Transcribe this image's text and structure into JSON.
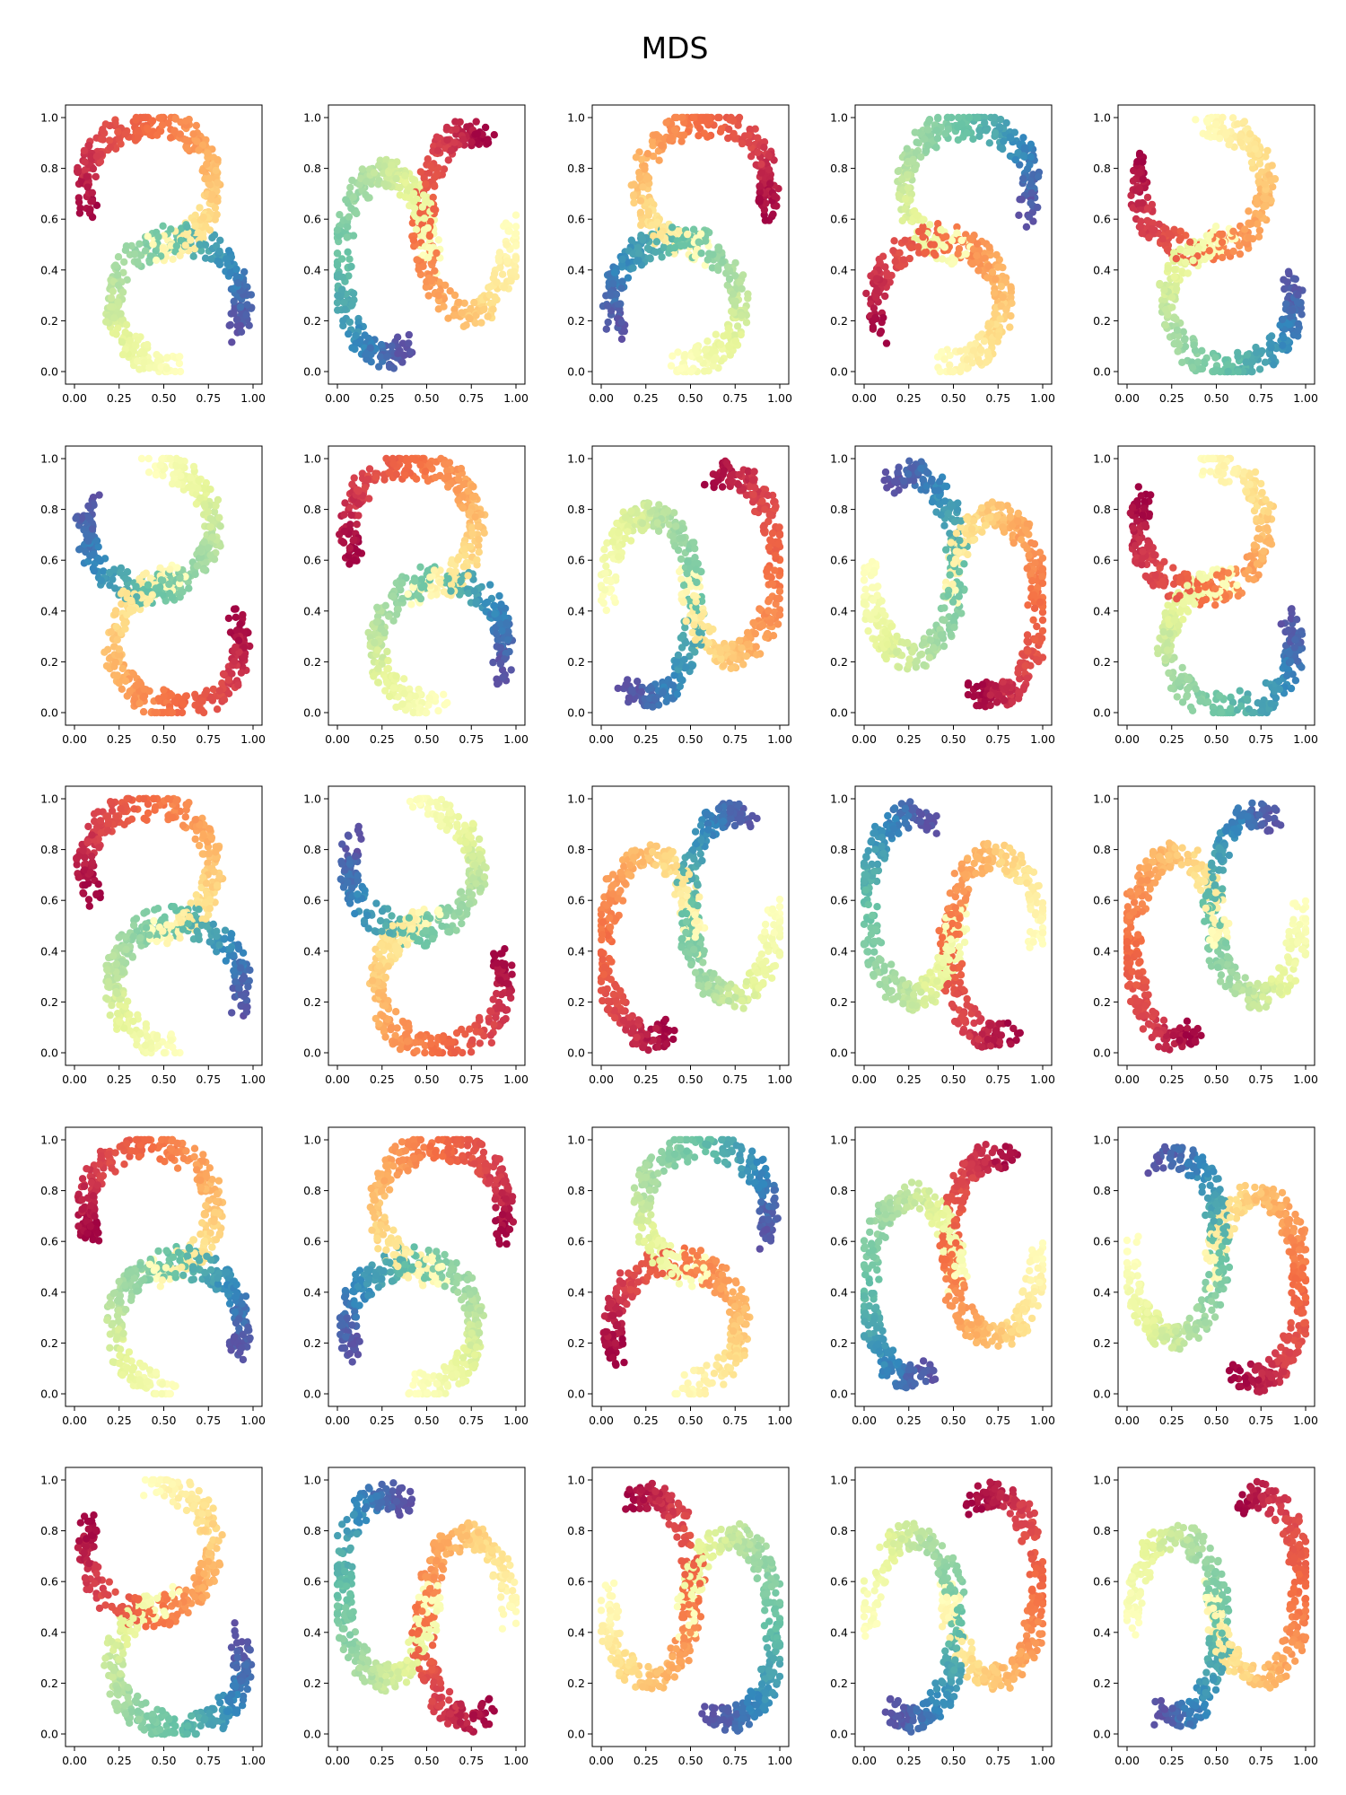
{
  "figure": {
    "title": "MDS"
  },
  "chart_data": {
    "type": "scatter",
    "title": "MDS",
    "layout": "5x5 grid of subplots",
    "colormap": "Spectral",
    "grid": false,
    "xlim": [
      0,
      1
    ],
    "ylim": [
      0,
      1
    ],
    "x_ticks": [
      "0.00",
      "0.25",
      "0.50",
      "0.75",
      "1.00"
    ],
    "y_ticks": [
      "0.0",
      "0.2",
      "0.4",
      "0.6",
      "0.8",
      "1.0"
    ],
    "panels": [
      {
        "shape": "S",
        "flipX": false,
        "flipY": false,
        "swap": false,
        "rev": false,
        "x": [
          0.0,
          1.0
        ],
        "y": [
          0.0,
          1.0
        ]
      },
      {
        "shape": "S",
        "flipX": true,
        "flipY": false,
        "swap": true,
        "rev": true,
        "x": [
          0.0,
          1.0
        ],
        "y": [
          0.0,
          1.0
        ]
      },
      {
        "shape": "S",
        "flipX": true,
        "flipY": false,
        "swap": false,
        "rev": false,
        "x": [
          0.0,
          1.0
        ],
        "y": [
          0.0,
          1.0
        ]
      },
      {
        "shape": "S",
        "flipX": true,
        "flipY": false,
        "swap": false,
        "rev": true,
        "x": [
          0.0,
          1.0
        ],
        "y": [
          0.0,
          1.0
        ]
      },
      {
        "shape": "S",
        "flipX": true,
        "flipY": true,
        "swap": false,
        "rev": true,
        "x": [
          0.0,
          1.0
        ],
        "y": [
          0.0,
          1.0
        ]
      },
      {
        "shape": "S",
        "flipX": true,
        "flipY": true,
        "swap": false,
        "rev": false,
        "x": [
          0.0,
          1.0
        ],
        "y": [
          0.0,
          1.0
        ]
      },
      {
        "shape": "S",
        "flipX": false,
        "flipY": false,
        "swap": false,
        "rev": false,
        "x": [
          0.0,
          1.0
        ],
        "y": [
          0.0,
          1.0
        ]
      },
      {
        "shape": "S",
        "flipX": false,
        "flipY": true,
        "swap": true,
        "rev": false,
        "x": [
          0.0,
          1.0
        ],
        "y": [
          0.0,
          1.0
        ]
      },
      {
        "shape": "S",
        "flipX": false,
        "flipY": false,
        "swap": true,
        "rev": false,
        "x": [
          0.0,
          1.0
        ],
        "y": [
          0.0,
          1.0
        ]
      },
      {
        "shape": "S",
        "flipX": true,
        "flipY": true,
        "swap": false,
        "rev": true,
        "x": [
          0.0,
          1.0
        ],
        "y": [
          0.0,
          1.0
        ]
      },
      {
        "shape": "S",
        "flipX": false,
        "flipY": false,
        "swap": false,
        "rev": false,
        "x": [
          0.0,
          1.0
        ],
        "y": [
          0.0,
          1.0
        ]
      },
      {
        "shape": "S",
        "flipX": true,
        "flipY": true,
        "swap": false,
        "rev": false,
        "x": [
          0.0,
          1.0
        ],
        "y": [
          0.0,
          1.0
        ]
      },
      {
        "shape": "S",
        "flipX": true,
        "flipY": false,
        "swap": true,
        "rev": false,
        "x": [
          0.0,
          1.0
        ],
        "y": [
          0.0,
          1.0
        ]
      },
      {
        "shape": "S",
        "flipX": true,
        "flipY": true,
        "swap": true,
        "rev": true,
        "x": [
          0.0,
          1.0
        ],
        "y": [
          0.0,
          1.0
        ]
      },
      {
        "shape": "S",
        "flipX": true,
        "flipY": false,
        "swap": true,
        "rev": false,
        "x": [
          0.0,
          1.0
        ],
        "y": [
          0.0,
          1.0
        ]
      },
      {
        "shape": "S",
        "flipX": false,
        "flipY": false,
        "swap": false,
        "rev": false,
        "x": [
          0.0,
          1.0
        ],
        "y": [
          0.0,
          1.0
        ]
      },
      {
        "shape": "S",
        "flipX": true,
        "flipY": false,
        "swap": false,
        "rev": false,
        "x": [
          0.0,
          1.0
        ],
        "y": [
          0.0,
          1.0
        ]
      },
      {
        "shape": "S",
        "flipX": true,
        "flipY": false,
        "swap": false,
        "rev": true,
        "x": [
          0.0,
          1.0
        ],
        "y": [
          0.0,
          1.0
        ]
      },
      {
        "shape": "S",
        "flipX": true,
        "flipY": false,
        "swap": true,
        "rev": true,
        "x": [
          0.0,
          1.0
        ],
        "y": [
          0.0,
          1.0
        ]
      },
      {
        "shape": "S",
        "flipX": false,
        "flipY": false,
        "swap": true,
        "rev": false,
        "x": [
          0.0,
          1.0
        ],
        "y": [
          0.0,
          1.0
        ]
      },
      {
        "shape": "S",
        "flipX": true,
        "flipY": true,
        "swap": false,
        "rev": true,
        "x": [
          0.0,
          1.0
        ],
        "y": [
          0.0,
          1.0
        ]
      },
      {
        "shape": "S",
        "flipX": true,
        "flipY": true,
        "swap": true,
        "rev": true,
        "x": [
          0.0,
          1.0
        ],
        "y": [
          0.0,
          1.0
        ]
      },
      {
        "shape": "S",
        "flipX": false,
        "flipY": false,
        "swap": true,
        "rev": true,
        "x": [
          0.0,
          1.0
        ],
        "y": [
          0.0,
          1.0
        ]
      },
      {
        "shape": "S",
        "flipX": false,
        "flipY": true,
        "swap": true,
        "rev": false,
        "x": [
          0.0,
          1.0
        ],
        "y": [
          0.0,
          1.0
        ]
      },
      {
        "shape": "S",
        "flipX": false,
        "flipY": true,
        "swap": true,
        "rev": false,
        "x": [
          0.0,
          1.0
        ],
        "y": [
          0.0,
          1.0
        ]
      }
    ]
  }
}
